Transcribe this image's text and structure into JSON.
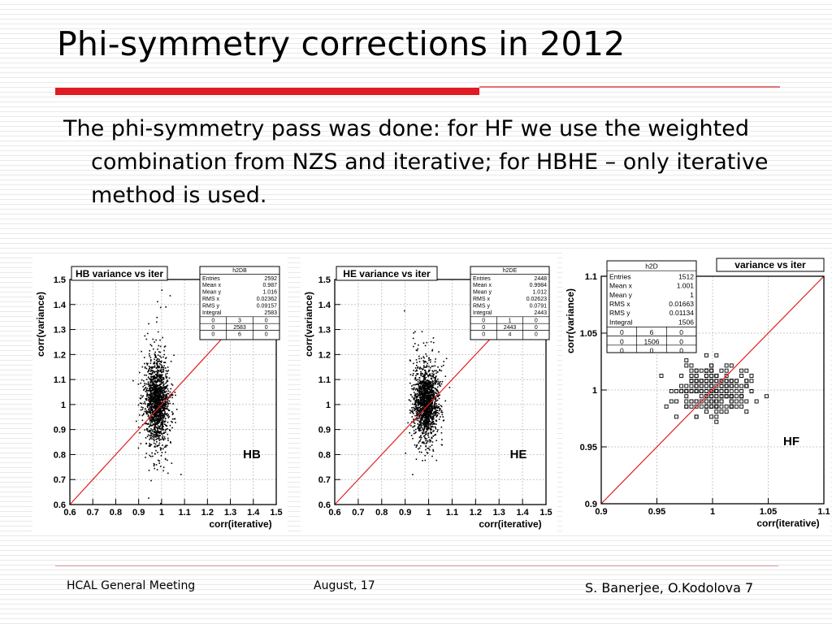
{
  "title": "Phi-symmetry corrections in 2012",
  "body": "The phi-symmetry pass was done: for HF we use the weighted combination from NZS and iterative; for HBHE – only iterative method is used.",
  "footer": {
    "left": "HCAL General Meeting",
    "center": "August, 17",
    "right": "S. Banerjee, O.Kodolova  7"
  },
  "chart_data": [
    {
      "type": "scatter",
      "title": "HB variance vs iter",
      "xlabel": "corr(iterative)",
      "ylabel": "corr(variance)",
      "label": "HB",
      "xlim": [
        0.6,
        1.5
      ],
      "ylim": [
        0.6,
        1.5
      ],
      "xticks": [
        "0.6",
        "0.7",
        "0.8",
        "0.9",
        "1",
        "1.1",
        "1.2",
        "1.3",
        "1.4",
        "1.5"
      ],
      "yticks": [
        "0.6",
        "0.7",
        "0.8",
        "0.9",
        "1",
        "1.1",
        "1.2",
        "1.3",
        "1.4",
        "1.5"
      ],
      "diagonal": [
        [
          0.6,
          0.6
        ],
        [
          1.5,
          1.5
        ]
      ],
      "cloud": {
        "center": [
          0.98,
          1.01
        ],
        "spread": [
          0.025,
          0.09
        ],
        "count": 2592
      },
      "stats": {
        "name": "h2DB",
        "rows": [
          [
            "Entries",
            "2592"
          ],
          [
            "Mean x",
            "0.987"
          ],
          [
            "Mean y",
            "1.016"
          ],
          [
            "RMS x",
            "0.02362"
          ],
          [
            "RMS y",
            "0.09157"
          ],
          [
            "Integral",
            "2583"
          ]
        ],
        "grid": [
          [
            "0",
            "3",
            "0"
          ],
          [
            "0",
            "2583",
            "0"
          ],
          [
            "0",
            "6",
            "0"
          ]
        ]
      }
    },
    {
      "type": "scatter",
      "title": "HE variance vs iter",
      "xlabel": "corr(iterative)",
      "ylabel": "corr(variance)",
      "label": "HE",
      "xlim": [
        0.6,
        1.5
      ],
      "ylim": [
        0.6,
        1.5
      ],
      "xticks": [
        "0.6",
        "0.7",
        "0.8",
        "0.9",
        "1",
        "1.1",
        "1.2",
        "1.3",
        "1.4",
        "1.5"
      ],
      "yticks": [
        "0.6",
        "0.7",
        "0.8",
        "0.9",
        "1",
        "1.1",
        "1.2",
        "1.3",
        "1.4",
        "1.5"
      ],
      "diagonal": [
        [
          0.6,
          0.6
        ],
        [
          1.5,
          1.5
        ]
      ],
      "cloud": {
        "center": [
          0.99,
          1.01
        ],
        "spread": [
          0.026,
          0.08
        ],
        "count": 2448
      },
      "stats": {
        "name": "h2DE",
        "rows": [
          [
            "Entries",
            "2448"
          ],
          [
            "Mean x",
            "0.9984"
          ],
          [
            "Mean y",
            "1.012"
          ],
          [
            "RMS x",
            "0.02623"
          ],
          [
            "RMS y",
            "0.0791"
          ],
          [
            "Integral",
            "2443"
          ]
        ],
        "grid": [
          [
            "0",
            "1",
            "0"
          ],
          [
            "0",
            "2443",
            "0"
          ],
          [
            "0",
            "4",
            "0"
          ]
        ]
      }
    },
    {
      "type": "scatter",
      "title": "variance vs iter",
      "xlabel": "corr(iterative)",
      "ylabel": "corr(variance)",
      "label": "HF",
      "xlim": [
        0.9,
        1.1
      ],
      "ylim": [
        0.9,
        1.1
      ],
      "xticks": [
        "0.9",
        "0.95",
        "1",
        "1.05",
        "1.1"
      ],
      "yticks": [
        "0.9",
        "0.95",
        "1",
        "1.05",
        "1.1"
      ],
      "diagonal": [
        [
          0.9,
          0.9
        ],
        [
          1.1,
          1.1
        ]
      ],
      "cloud": {
        "center": [
          1.0,
          1.0
        ],
        "spread": [
          0.016,
          0.011
        ],
        "count": 1512
      },
      "stats": {
        "name": "h2D",
        "rows": [
          [
            "Entries",
            "1512"
          ],
          [
            "Mean x",
            "1.001"
          ],
          [
            "Mean y",
            "1"
          ],
          [
            "RMS x",
            "0.01663"
          ],
          [
            "RMS y",
            "0.01134"
          ],
          [
            "Integral",
            "1506"
          ]
        ],
        "grid": [
          [
            "0",
            "6",
            "0"
          ],
          [
            "0",
            "1506",
            "0"
          ],
          [
            "0",
            "0",
            "0"
          ]
        ]
      }
    }
  ]
}
